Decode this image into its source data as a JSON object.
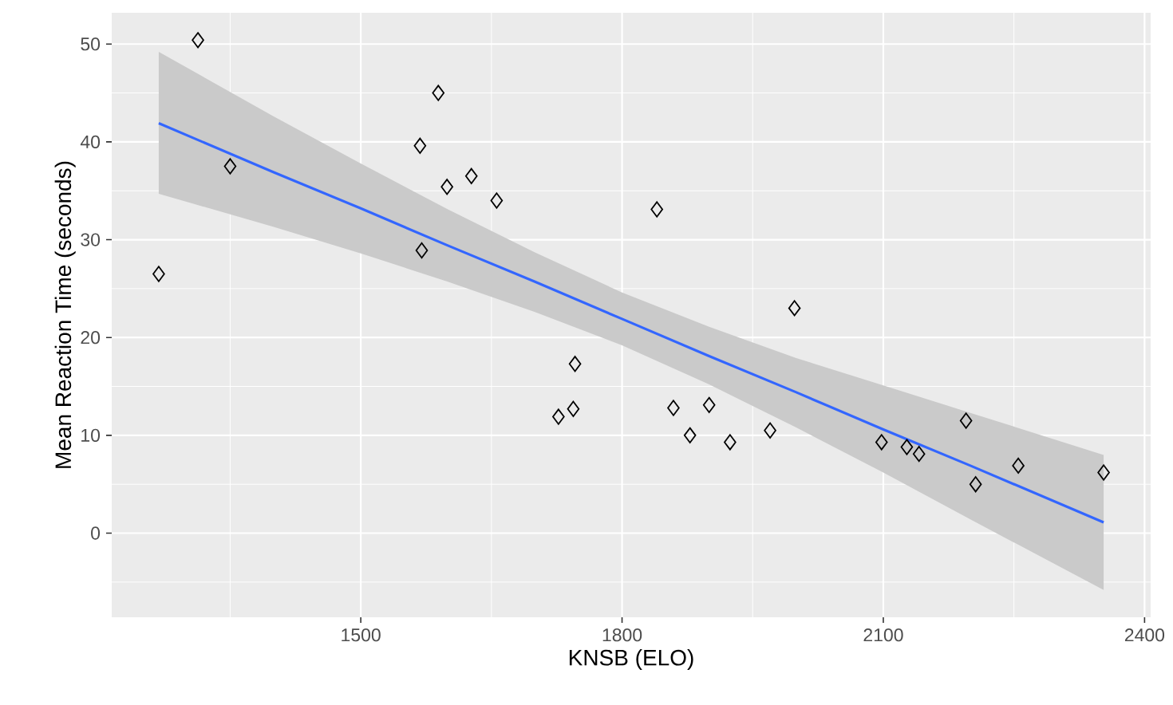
{
  "chart_data": {
    "type": "scatter",
    "xlabel": "KNSB (ELO)",
    "ylabel": "Mean Reaction Time (seconds)",
    "xlim": [
      1214,
      2407
    ],
    "ylim": [
      -8.6,
      53.2
    ],
    "xticks": [
      1500,
      1800,
      2100,
      2400
    ],
    "yticks": [
      0,
      10,
      20,
      30,
      40,
      50
    ],
    "grid": true,
    "marker": "diamond",
    "series": [
      {
        "color": "#000000",
        "x": [
          1268,
          1313,
          1350,
          1568,
          1589,
          1570,
          1599,
          1627,
          1656,
          1746,
          1727,
          1744,
          1840,
          1859,
          1878,
          1900,
          1924,
          1970,
          1998,
          2098,
          2127,
          2141,
          2195,
          2206,
          2255,
          2353
        ],
        "values": [
          26.5,
          50.4,
          37.5,
          39.6,
          45.0,
          28.9,
          35.4,
          36.5,
          34.0,
          17.3,
          11.9,
          12.7,
          33.1,
          12.8,
          10.0,
          13.1,
          9.3,
          10.5,
          23.0,
          9.3,
          8.8,
          8.1,
          11.5,
          5.0,
          6.9,
          6.2
        ]
      },
      {
        "type": "line",
        "color": "#3366ff",
        "marker": "none",
        "x": [
          1268,
          1400,
          1500,
          1600,
          1700,
          1800,
          1900,
          2000,
          2100,
          2200,
          2353
        ],
        "values": [
          41.9,
          36.9,
          33.2,
          29.4,
          25.7,
          21.9,
          18.1,
          14.4,
          10.6,
          6.9,
          1.1
        ],
        "lower": [
          34.7,
          31.3,
          28.6,
          25.7,
          22.6,
          19.2,
          15.2,
          10.8,
          6.2,
          1.4,
          -5.8
        ],
        "upper": [
          49.2,
          42.6,
          37.8,
          33.1,
          28.7,
          24.6,
          21.1,
          17.9,
          15.1,
          12.3,
          8.0
        ]
      }
    ]
  }
}
